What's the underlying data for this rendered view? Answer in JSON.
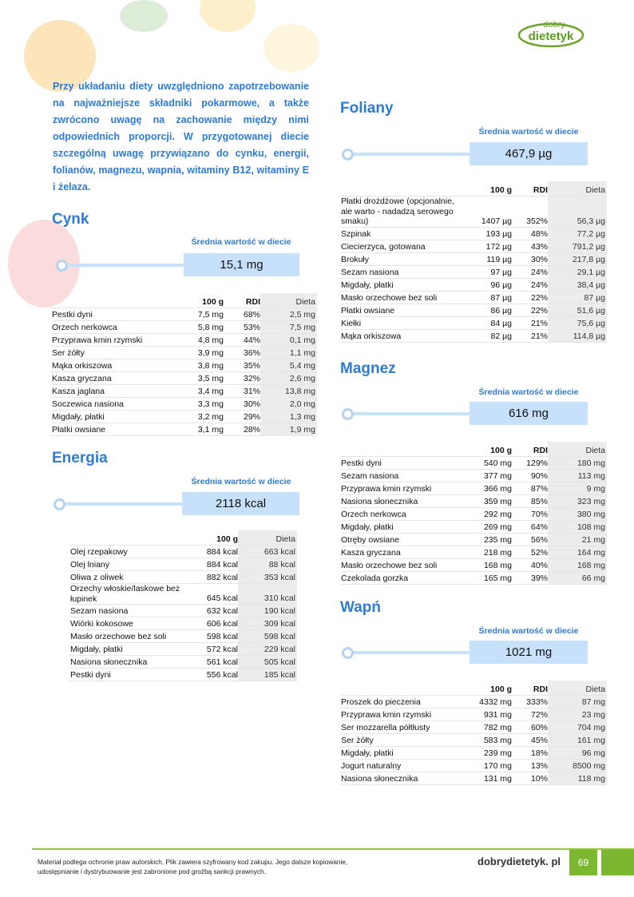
{
  "logo": {
    "line1": "dobry",
    "line2": "dietetyk"
  },
  "intro": "Przy układaniu diety uwzględniono zapotrzebowanie na najważniejsze składniki pokarmowe, a także zwrócono uwagę na zachowanie między nimi odpowiednich proporcji. W przygotowanej diecie szczególną uwagę przywiązano do cynku, energii, folianów, magnezu, wapnia, witaminy B12, witaminy E i żelaza.",
  "avg_label": "Średnia wartość w diecie",
  "colors": {
    "accent": "#2e7bd6",
    "box": "#c8e1fa",
    "green": "#7cb82f"
  },
  "sections": {
    "cynk": {
      "title": "Cynk",
      "average": "15,1 mg",
      "headers": [
        "",
        "100 g",
        "RDI",
        "Dieta"
      ],
      "rows": [
        [
          "Pestki dyni",
          "7,5 mg",
          "68%",
          "2,5 mg"
        ],
        [
          "Orzech nerkowca",
          "5,8 mg",
          "53%",
          "7,5 mg"
        ],
        [
          "Przyprawa kmin rzymski",
          "4,8 mg",
          "44%",
          "0,1 mg"
        ],
        [
          "Ser żółty",
          "3,9 mg",
          "36%",
          "1,1 mg"
        ],
        [
          "Mąka orkiszowa",
          "3,8 mg",
          "35%",
          "5,4 mg"
        ],
        [
          "Kasza gryczana",
          "3,5 mg",
          "32%",
          "2,6 mg"
        ],
        [
          "Kasza jaglana",
          "3,4 mg",
          "31%",
          "13,8 mg"
        ],
        [
          "Soczewica nasiona",
          "3,3 mg",
          "30%",
          "2,0 mg"
        ],
        [
          "Migdały, płatki",
          "3,2 mg",
          "29%",
          "1,3 mg"
        ],
        [
          "Płatki owsiane",
          "3,1 mg",
          "28%",
          "1,9 mg"
        ]
      ]
    },
    "energia": {
      "title": "Energia",
      "average": "2118 kcal",
      "headers": [
        "",
        "100 g",
        "Dieta"
      ],
      "rows": [
        [
          "Olej rzepakowy",
          "884 kcal",
          "663 kcal"
        ],
        [
          "Olej lniany",
          "884 kcal",
          "88 kcal"
        ],
        [
          "Oliwa z oliwek",
          "882 kcal",
          "353 kcal"
        ],
        [
          "Orzechy włoskie/laskowe bez łupinek",
          "645 kcal",
          "310 kcal"
        ],
        [
          "Sezam nasiona",
          "632 kcal",
          "190 kcal"
        ],
        [
          "Wiórki kokosowe",
          "606 kcal",
          "309 kcal"
        ],
        [
          "Masło orzechowe bez soli",
          "598 kcal",
          "598 kcal"
        ],
        [
          "Migdały, płatki",
          "572 kcal",
          "229 kcal"
        ],
        [
          "Nasiona słonecznika",
          "561 kcal",
          "505 kcal"
        ],
        [
          "Pestki dyni",
          "556 kcal",
          "185 kcal"
        ]
      ]
    },
    "foliany": {
      "title": "Foliany",
      "average": "467,9 µg",
      "headers": [
        "",
        "100 g",
        "RDI",
        "Dieta"
      ],
      "rows": [
        [
          "Płatki drożdżowe (opcjonalnie, ale warto - nadadzą serowego smaku)",
          "1407 µg",
          "352%",
          "56,3 µg"
        ],
        [
          "Szpinak",
          "193 µg",
          "48%",
          "77,2 µg"
        ],
        [
          "Ciecierzyca, gotowana",
          "172 µg",
          "43%",
          "791,2 µg"
        ],
        [
          "Brokuły",
          "119 µg",
          "30%",
          "217,8 µg"
        ],
        [
          "Sezam nasiona",
          "97 µg",
          "24%",
          "29,1 µg"
        ],
        [
          "Migdały, płatki",
          "96 µg",
          "24%",
          "38,4 µg"
        ],
        [
          "Masło orzechowe bez soli",
          "87 µg",
          "22%",
          "87 µg"
        ],
        [
          "Płatki owsiane",
          "86 µg",
          "22%",
          "51,6 µg"
        ],
        [
          "Kiełki",
          "84 µg",
          "21%",
          "75,6 µg"
        ],
        [
          "Mąka orkiszowa",
          "82 µg",
          "21%",
          "114,8 µg"
        ]
      ]
    },
    "magnez": {
      "title": "Magnez",
      "average": "616 mg",
      "headers": [
        "",
        "100 g",
        "RDI",
        "Dieta"
      ],
      "rows": [
        [
          "Pestki dyni",
          "540 mg",
          "129%",
          "180 mg"
        ],
        [
          "Sezam nasiona",
          "377 mg",
          "90%",
          "113 mg"
        ],
        [
          "Przyprawa kmin rzymski",
          "366 mg",
          "87%",
          "9 mg"
        ],
        [
          "Nasiona słonecznika",
          "359 mg",
          "85%",
          "323 mg"
        ],
        [
          "Orzech nerkowca",
          "292 mg",
          "70%",
          "380 mg"
        ],
        [
          "Migdały, płatki",
          "269 mg",
          "64%",
          "108 mg"
        ],
        [
          "Otręby owsiane",
          "235 mg",
          "56%",
          "21 mg"
        ],
        [
          "Kasza gryczana",
          "218 mg",
          "52%",
          "164 mg"
        ],
        [
          "Masło orzechowe bez soli",
          "168 mg",
          "40%",
          "168 mg"
        ],
        [
          "Czekolada gorzka",
          "165 mg",
          "39%",
          "66 mg"
        ]
      ]
    },
    "wapn": {
      "title": "Wapń",
      "average": "1021 mg",
      "headers": [
        "",
        "100 g",
        "RDI",
        "Dieta"
      ],
      "rows": [
        [
          "Proszek do pieczenia",
          "4332 mg",
          "333%",
          "87 mg"
        ],
        [
          "Przyprawa kmin rzymski",
          "931 mg",
          "72%",
          "23 mg"
        ],
        [
          "Ser mozzarella półtłusty",
          "782 mg",
          "60%",
          "704 mg"
        ],
        [
          "Ser żółty",
          "583 mg",
          "45%",
          "161 mg"
        ],
        [
          "Migdały, płatki",
          "239 mg",
          "18%",
          "96 mg"
        ],
        [
          "Jogurt naturalny",
          "170 mg",
          "13%",
          "8500 mg"
        ],
        [
          "Nasiona słonecznika",
          "131 mg",
          "10%",
          "118 mg"
        ]
      ]
    }
  },
  "footer": {
    "notice": "Materiał podlega ochronie praw autorskich. Plik zawiera szyfrowany kod zakupu. Jego dalsze kopiowanie, udostępnianie i dystrybuowanie jest zabronione pod groźbą sankcji prawnych.",
    "site": "dobrydietetyk. pl",
    "page": "69"
  }
}
